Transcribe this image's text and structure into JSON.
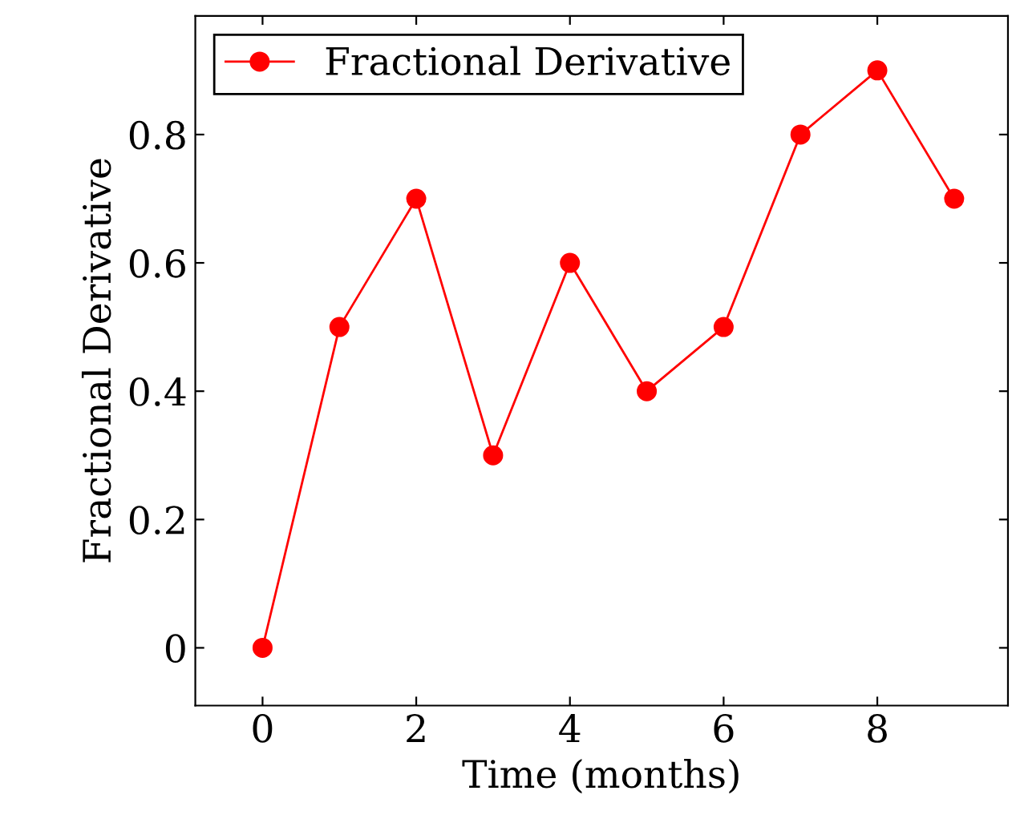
{
  "chart_data": {
    "type": "line",
    "xlabel": "Time (months)",
    "ylabel": "Fractional Derivative",
    "x": [
      0,
      1,
      2,
      3,
      4,
      5,
      6,
      7,
      8,
      9
    ],
    "series": [
      {
        "name": "Fractional Derivative",
        "color": "#ff0000",
        "values": [
          0,
          0.5,
          0.7,
          0.3,
          0.6,
          0.4,
          0.5,
          0.8,
          0.9,
          0.7
        ]
      }
    ],
    "xlim": [
      -0.875,
      9.7
    ],
    "ylim": [
      -0.09,
      0.985
    ],
    "xticks": [
      0,
      2,
      4,
      6,
      8
    ],
    "yticks": [
      0,
      0.2,
      0.4,
      0.6,
      0.8
    ],
    "marker": "circle",
    "line_style": "solid",
    "legend": "top left",
    "grid": false
  }
}
